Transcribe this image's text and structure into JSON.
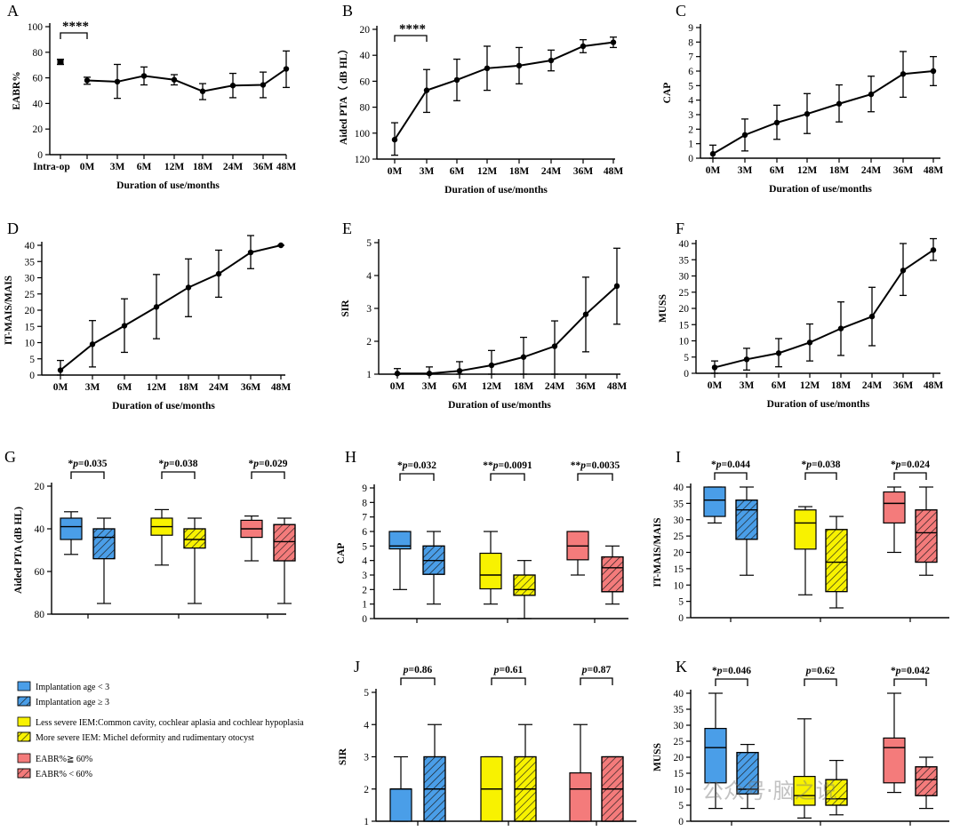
{
  "colors": {
    "blue": "#4a9ee8",
    "yellow": "#f8f200",
    "red": "#f47b7b",
    "line": "#000000"
  },
  "watermark": "公众号·脑之说",
  "legend": {
    "items": [
      {
        "label": "Implantation age < 3",
        "color": "blue",
        "hatched": false
      },
      {
        "label": "Implantation age ≥ 3",
        "color": "blue",
        "hatched": true
      },
      {
        "label": "Less severe IEM:Common cavity, cochlear aplasia and cochlear hypoplasia",
        "color": "yellow",
        "hatched": false
      },
      {
        "label": "More severe IEM: Michel deformity and rudimentary otocyst",
        "color": "yellow",
        "hatched": true
      },
      {
        "label": "EABR%≧ 60%",
        "color": "red",
        "hatched": false
      },
      {
        "label": "EABR% < 60%",
        "color": "red",
        "hatched": true
      }
    ]
  },
  "chart_data": [
    {
      "panel": "A",
      "type": "line",
      "xlabel": "Duration of use/months",
      "ylabel": "EABR%",
      "ylim": [
        0,
        100
      ],
      "yticks": [
        0,
        20,
        40,
        60,
        80,
        100
      ],
      "reversed": false,
      "categories": [
        "Intra-op",
        "0M",
        "3M",
        "6M",
        "12M",
        "18M",
        "24M",
        "36M",
        "48M"
      ],
      "values": [
        72.5,
        58,
        57,
        61.5,
        58.5,
        49.5,
        54,
        54.5,
        67
      ],
      "err_low": [
        70.5,
        55,
        44,
        54.5,
        54.5,
        43,
        44.5,
        44.5,
        52.5
      ],
      "err_high": [
        74.5,
        60.5,
        70.5,
        68.5,
        62.5,
        55.5,
        63.5,
        64.5,
        81
      ],
      "separate_first": true,
      "significance": {
        "text": "****",
        "from": 0,
        "to": 1
      }
    },
    {
      "panel": "B",
      "type": "line",
      "xlabel": "Duration of use/months",
      "ylabel": "Aided PTA（ dB HL）",
      "ylim": [
        20,
        120
      ],
      "yticks": [
        20,
        40,
        60,
        80,
        100,
        120
      ],
      "reversed": true,
      "categories": [
        "0M",
        "3M",
        "6M",
        "12M",
        "18M",
        "24M",
        "36M",
        "48M"
      ],
      "values": [
        105,
        67,
        59,
        50,
        48,
        44,
        33,
        30
      ],
      "err_low": [
        92,
        51,
        43,
        33,
        34,
        36,
        28,
        26
      ],
      "err_high": [
        117,
        84,
        75,
        67,
        62,
        52,
        38,
        34
      ],
      "significance": {
        "text": "****",
        "from": 0,
        "to": 1
      }
    },
    {
      "panel": "C",
      "type": "line",
      "xlabel": "Duration of use/months",
      "ylabel": "CAP",
      "ylim": [
        0,
        9
      ],
      "yticks": [
        0,
        1,
        2,
        3,
        4,
        5,
        6,
        7,
        8,
        9
      ],
      "reversed": false,
      "categories": [
        "0M",
        "3M",
        "6M",
        "12M",
        "18M",
        "24M",
        "36M",
        "48M"
      ],
      "values": [
        0.3,
        1.6,
        2.45,
        3.05,
        3.75,
        4.4,
        5.8,
        6.0
      ],
      "err_low": [
        0,
        0.5,
        1.3,
        1.7,
        2.5,
        3.2,
        4.2,
        5.0
      ],
      "err_high": [
        0.9,
        2.7,
        3.65,
        4.45,
        5.05,
        5.65,
        7.35,
        7.0
      ]
    },
    {
      "panel": "D",
      "type": "line",
      "xlabel": "Duration of use/months",
      "ylabel": "IT-MAIS/MAIS",
      "ylim": [
        0,
        40
      ],
      "yticks": [
        0,
        5,
        10,
        15,
        20,
        25,
        30,
        35,
        40
      ],
      "reversed": false,
      "categories": [
        "0M",
        "3M",
        "6M",
        "12M",
        "18M",
        "24M",
        "36M",
        "48M"
      ],
      "values": [
        1.5,
        9.5,
        15.2,
        21,
        27,
        31.2,
        37.8,
        40
      ],
      "err_low": [
        0,
        2.5,
        7,
        11.2,
        18,
        24,
        32.8,
        40
      ],
      "err_high": [
        4.5,
        16.8,
        23.5,
        31,
        35.8,
        38.5,
        43,
        40
      ]
    },
    {
      "panel": "E",
      "type": "line",
      "xlabel": "Duration of use/months",
      "ylabel": "SIR",
      "ylim": [
        1,
        5
      ],
      "yticks": [
        1,
        2,
        3,
        4,
        5
      ],
      "reversed": false,
      "categories": [
        "0M",
        "3M",
        "6M",
        "12M",
        "18M",
        "24M",
        "36M",
        "48M"
      ],
      "values": [
        1.02,
        1.02,
        1.1,
        1.27,
        1.52,
        1.85,
        2.82,
        3.68
      ],
      "err_low": [
        1,
        1,
        1,
        1,
        1,
        1,
        1.68,
        2.52
      ],
      "err_high": [
        1.17,
        1.22,
        1.38,
        1.72,
        2.12,
        2.62,
        3.95,
        4.83
      ]
    },
    {
      "panel": "F",
      "type": "line",
      "xlabel": "Duration of use/months",
      "ylabel": "MUSS",
      "ylim": [
        0,
        40
      ],
      "yticks": [
        0,
        5,
        10,
        15,
        20,
        25,
        30,
        35,
        40
      ],
      "reversed": false,
      "categories": [
        "0M",
        "3M",
        "6M",
        "12M",
        "18M",
        "24M",
        "36M",
        "48M"
      ],
      "values": [
        1.8,
        4.3,
        6.2,
        9.5,
        13.8,
        17.5,
        31.7,
        38
      ],
      "err_low": [
        0,
        1,
        2,
        3.8,
        5.5,
        8.5,
        24,
        34.8
      ],
      "err_high": [
        3.8,
        7.7,
        10.7,
        15.2,
        22,
        26.5,
        40,
        41.5
      ]
    },
    {
      "panel": "G",
      "type": "box",
      "ylabel": "Aided PTA (dB HL)",
      "ylim": [
        20,
        80
      ],
      "yticks": [
        20,
        40,
        60,
        80
      ],
      "reversed": true,
      "pvalues": [
        {
          "stars": "*",
          "p": "p",
          "value": "=0.035"
        },
        {
          "stars": "*",
          "p": "p",
          "value": "=0.038"
        },
        {
          "stars": "*",
          "p": "p",
          "value": "=0.029"
        }
      ],
      "boxes": [
        {
          "color": "blue",
          "hatched": false,
          "min": 32,
          "q1": 35,
          "median": 39,
          "q3": 45,
          "max": 52
        },
        {
          "color": "blue",
          "hatched": true,
          "min": 35,
          "q1": 40,
          "median": 44,
          "q3": 54,
          "max": 75
        },
        {
          "color": "yellow",
          "hatched": false,
          "min": 31,
          "q1": 35,
          "median": 39,
          "q3": 43,
          "max": 57
        },
        {
          "color": "yellow",
          "hatched": true,
          "min": 35,
          "q1": 40,
          "median": 45,
          "q3": 49,
          "max": 75
        },
        {
          "color": "red",
          "hatched": false,
          "min": 34,
          "q1": 36,
          "median": 40,
          "q3": 44,
          "max": 55
        },
        {
          "color": "red",
          "hatched": true,
          "min": 35,
          "q1": 38,
          "median": 46,
          "q3": 55,
          "max": 75
        }
      ]
    },
    {
      "panel": "H",
      "type": "box",
      "ylabel": "CAP",
      "ylim": [
        0,
        9
      ],
      "yticks": [
        0,
        1,
        2,
        3,
        4,
        5,
        6,
        7,
        8,
        9
      ],
      "reversed": false,
      "pvalues": [
        {
          "stars": "*",
          "p": "p",
          "value": "=0.032"
        },
        {
          "stars": "**",
          "p": "p",
          "value": "=0.0091"
        },
        {
          "stars": "**",
          "p": "p",
          "value": "=0.0035"
        }
      ],
      "boxes": [
        {
          "color": "blue",
          "hatched": false,
          "min": 2,
          "q1": 4.8,
          "median": 5,
          "q3": 6,
          "max": 6
        },
        {
          "color": "blue",
          "hatched": true,
          "min": 1,
          "q1": 3.05,
          "median": 4,
          "q3": 5,
          "max": 6
        },
        {
          "color": "yellow",
          "hatched": false,
          "min": 1,
          "q1": 2.05,
          "median": 3,
          "q3": 4.5,
          "max": 6
        },
        {
          "color": "yellow",
          "hatched": true,
          "min": 0,
          "q1": 1.6,
          "median": 2,
          "q3": 3,
          "max": 4
        },
        {
          "color": "red",
          "hatched": false,
          "min": 3,
          "q1": 4.05,
          "median": 5,
          "q3": 6,
          "max": 6
        },
        {
          "color": "red",
          "hatched": true,
          "min": 1,
          "q1": 1.85,
          "median": 3.5,
          "q3": 4.25,
          "max": 5
        }
      ]
    },
    {
      "panel": "I",
      "type": "box",
      "ylabel": "IT-MAIS/MAIS",
      "ylim": [
        0,
        40
      ],
      "yticks": [
        0,
        5,
        10,
        15,
        20,
        25,
        30,
        35,
        40
      ],
      "reversed": false,
      "pvalues": [
        {
          "stars": "*",
          "p": "p",
          "value": "=0.044"
        },
        {
          "stars": "*",
          "p": "p",
          "value": "=0.038"
        },
        {
          "stars": "*",
          "p": "p",
          "value": "=0.024"
        }
      ],
      "boxes": [
        {
          "color": "blue",
          "hatched": false,
          "min": 29,
          "q1": 31,
          "median": 36,
          "q3": 40,
          "max": 40
        },
        {
          "color": "blue",
          "hatched": true,
          "min": 13,
          "q1": 24,
          "median": 33,
          "q3": 36,
          "max": 40
        },
        {
          "color": "yellow",
          "hatched": false,
          "min": 7,
          "q1": 21,
          "median": 29,
          "q3": 33,
          "max": 34
        },
        {
          "color": "yellow",
          "hatched": true,
          "min": 3,
          "q1": 8,
          "median": 17,
          "q3": 27,
          "max": 31
        },
        {
          "color": "red",
          "hatched": false,
          "min": 20,
          "q1": 29,
          "median": 35,
          "q3": 38.5,
          "max": 40
        },
        {
          "color": "red",
          "hatched": true,
          "min": 13,
          "q1": 17,
          "median": 26,
          "q3": 33,
          "max": 40
        }
      ]
    },
    {
      "panel": "J",
      "type": "box",
      "ylabel": "SIR",
      "ylim": [
        1,
        5
      ],
      "yticks": [
        1,
        2,
        3,
        4,
        5
      ],
      "reversed": false,
      "pvalues": [
        {
          "stars": "",
          "p": "p",
          "value": "=0.86"
        },
        {
          "stars": "",
          "p": "p",
          "value": "=0.61"
        },
        {
          "stars": "",
          "p": "p",
          "value": "=0.87"
        }
      ],
      "boxes": [
        {
          "color": "blue",
          "hatched": false,
          "min": 1,
          "q1": 1,
          "median": 2,
          "q3": 2,
          "max": 3
        },
        {
          "color": "blue",
          "hatched": true,
          "min": 1,
          "q1": 1,
          "median": 2,
          "q3": 3,
          "max": 4
        },
        {
          "color": "yellow",
          "hatched": false,
          "min": 1,
          "q1": 1,
          "median": 2,
          "q3": 3,
          "max": 3
        },
        {
          "color": "yellow",
          "hatched": true,
          "min": 1,
          "q1": 1,
          "median": 2,
          "q3": 3,
          "max": 4
        },
        {
          "color": "red",
          "hatched": false,
          "min": 1,
          "q1": 1,
          "median": 2,
          "q3": 2.5,
          "max": 4
        },
        {
          "color": "red",
          "hatched": true,
          "min": 1,
          "q1": 1,
          "median": 2,
          "q3": 3,
          "max": 3
        }
      ]
    },
    {
      "panel": "K",
      "type": "box",
      "ylabel": "MUSS",
      "ylim": [
        0,
        40
      ],
      "yticks": [
        0,
        5,
        10,
        15,
        20,
        25,
        30,
        35,
        40
      ],
      "reversed": false,
      "pvalues": [
        {
          "stars": "*",
          "p": "p",
          "value": "=0.046"
        },
        {
          "stars": "",
          "p": "p",
          "value": "=0.62"
        },
        {
          "stars": "*",
          "p": "p",
          "value": "=0.042"
        }
      ],
      "boxes": [
        {
          "color": "blue",
          "hatched": false,
          "min": 4,
          "q1": 12,
          "median": 23,
          "q3": 29,
          "max": 40
        },
        {
          "color": "blue",
          "hatched": true,
          "min": 4,
          "q1": 8.5,
          "median": 10,
          "q3": 21.5,
          "max": 24
        },
        {
          "color": "yellow",
          "hatched": false,
          "min": 1,
          "q1": 5,
          "median": 8,
          "q3": 14,
          "max": 32
        },
        {
          "color": "yellow",
          "hatched": true,
          "min": 2,
          "q1": 5,
          "median": 7,
          "q3": 13,
          "max": 19
        },
        {
          "color": "red",
          "hatched": false,
          "min": 9,
          "q1": 12,
          "median": 23,
          "q3": 26,
          "max": 40
        },
        {
          "color": "red",
          "hatched": true,
          "min": 4,
          "q1": 8,
          "median": 13,
          "q3": 17,
          "max": 20
        }
      ]
    }
  ]
}
